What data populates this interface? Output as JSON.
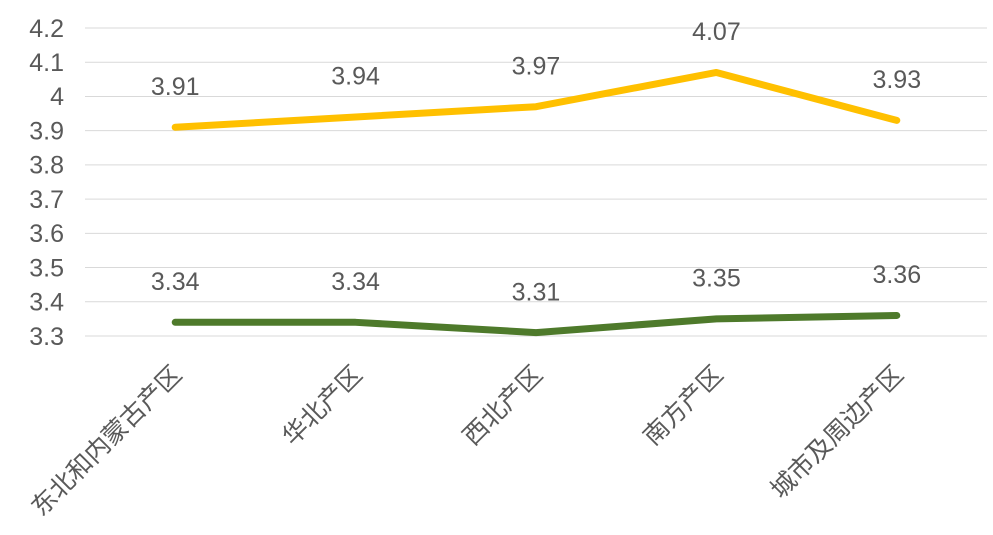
{
  "chart_data": {
    "type": "line",
    "title": "",
    "categories": [
      "东北和内蒙古产区",
      "华北产区",
      "西北产区",
      "南方产区",
      "城市及周边产区"
    ],
    "series": [
      {
        "name": "yellow-series",
        "color": "#FFC000",
        "values": [
          3.91,
          3.94,
          3.97,
          4.07,
          3.93
        ],
        "labels": [
          "3.91",
          "3.94",
          "3.97",
          "4.07",
          "3.93"
        ]
      },
      {
        "name": "green-series",
        "color": "#4E7A2B",
        "values": [
          3.34,
          3.34,
          3.31,
          3.35,
          3.36
        ],
        "labels": [
          "3.34",
          "3.34",
          "3.31",
          "3.35",
          "3.36"
        ]
      }
    ],
    "y_axis": {
      "min": 3.3,
      "max": 4.2,
      "step": 0.1,
      "tick_labels": [
        "3.3",
        "3.4",
        "3.5",
        "3.6",
        "3.7",
        "3.8",
        "3.9",
        "4",
        "4.1",
        "4.2"
      ]
    },
    "grid": true,
    "legend": "none",
    "label_color": "#595959",
    "gridline_color": "#D9D9D9"
  }
}
